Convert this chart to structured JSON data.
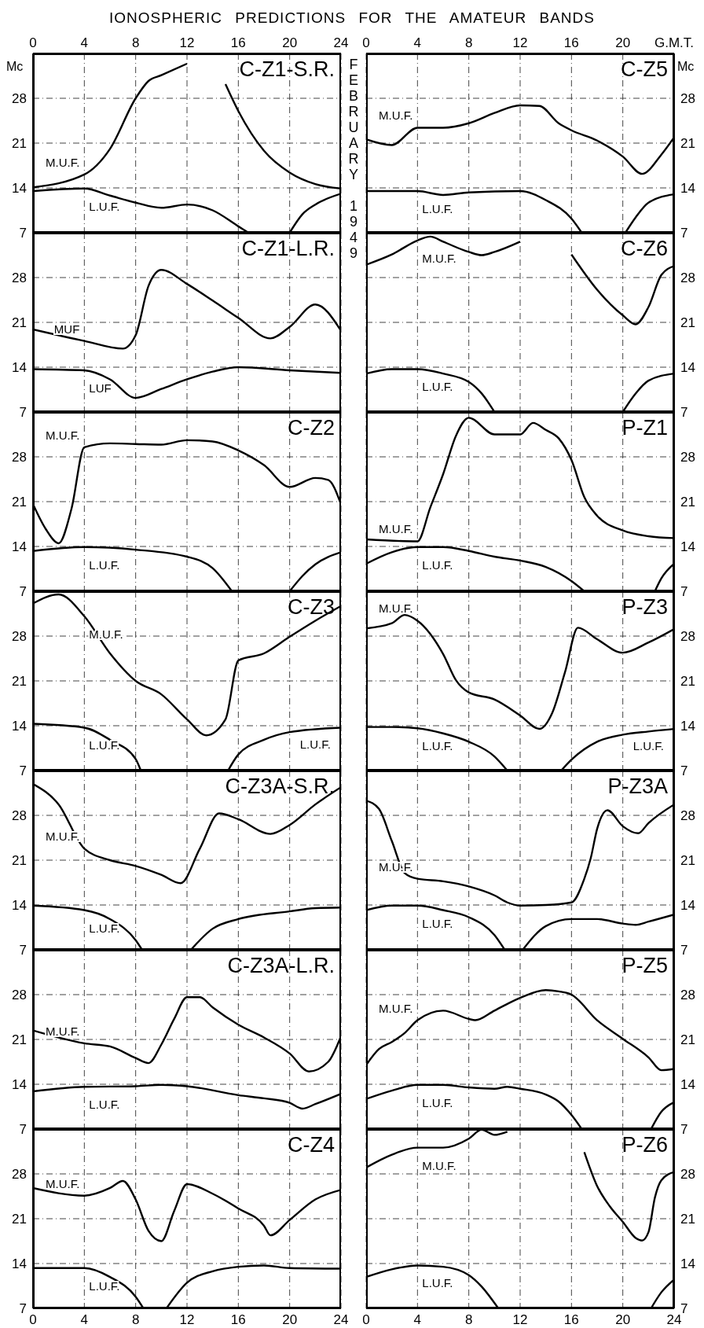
{
  "chart_data": [
    {
      "type": "line",
      "title": "C-Z1-S.R.",
      "ylabel": "Mc",
      "annotations": [
        "IONOSPHERIC PREDICTIONS FOR THE AMATEUR BANDS",
        "FEBRUARY 1949"
      ],
      "xlim": [
        0,
        24
      ],
      "xticks": [
        0,
        4,
        8,
        12,
        16,
        20,
        24
      ],
      "ylim": [
        7,
        35
      ],
      "yticks": [
        7,
        14,
        21,
        28
      ],
      "grid": true,
      "series": [
        {
          "name": "M.U.F.",
          "color": "#000000",
          "x": [
            0,
            4,
            6,
            8,
            9,
            10,
            12,
            13,
            14,
            15,
            16,
            18,
            20,
            22,
            24
          ],
          "values": [
            14.1,
            16.1,
            20.1,
            28,
            30.7,
            31.6,
            33.4,
            null,
            null,
            30.2,
            26,
            19.8,
            16.4,
            14.6,
            13.9
          ]
        },
        {
          "name": "L.U.F.",
          "color": "#000000",
          "x": [
            0,
            4,
            6,
            8,
            10,
            12,
            14,
            16,
            16.8,
            18,
            20,
            21,
            22,
            24
          ],
          "values": [
            13.5,
            13.9,
            12.8,
            11.7,
            10.9,
            11.4,
            10.5,
            8,
            7,
            null,
            7,
            9.9,
            11.4,
            13.1
          ]
        }
      ]
    },
    {
      "type": "line",
      "title": "C-Z1-L.R.",
      "xlim": [
        0,
        24
      ],
      "xticks": [
        0,
        4,
        8,
        12,
        16,
        20,
        24
      ],
      "ylim": [
        7,
        35
      ],
      "yticks": [
        7,
        14,
        21,
        28
      ],
      "grid": true,
      "tick_labels": "y",
      "series": [
        {
          "name": "MUF",
          "color": "#000000",
          "x": [
            0,
            4,
            7,
            8,
            9,
            10,
            12,
            14,
            16,
            18.5,
            20,
            22,
            24
          ],
          "values": [
            19.9,
            18.1,
            16.9,
            19,
            26.7,
            29.2,
            27,
            24.4,
            21.7,
            18.5,
            20.3,
            23.8,
            19.7
          ]
        },
        {
          "name": "LUF",
          "color": "#000000",
          "x": [
            0,
            4,
            6,
            8,
            10,
            12,
            14,
            16,
            20,
            24
          ],
          "values": [
            13.7,
            13.5,
            12.1,
            9.2,
            10.6,
            12.1,
            13.3,
            14,
            13.5,
            13.1
          ]
        }
      ]
    },
    {
      "type": "line",
      "title": "C-Z2",
      "xlim": [
        0,
        24
      ],
      "xticks": [
        0,
        4,
        8,
        12,
        16,
        20,
        24
      ],
      "ylim": [
        7,
        35
      ],
      "yticks": [
        7,
        14,
        21,
        28
      ],
      "grid": true,
      "tick_labels": "y",
      "series": [
        {
          "name": "M.U.F.",
          "color": "#000000",
          "x": [
            0,
            1,
            2,
            3,
            4,
            6,
            8,
            10,
            12,
            14,
            16,
            18,
            20,
            22,
            23,
            24
          ],
          "values": [
            20.6,
            16.7,
            14.5,
            19.9,
            29.5,
            30.1,
            30,
            29.9,
            30.6,
            30.4,
            29,
            26.7,
            23.3,
            24.7,
            24.4,
            20.6
          ]
        },
        {
          "name": "L.U.F.",
          "color": "#000000",
          "x": [
            0,
            4,
            8,
            12,
            14,
            15.5,
            18,
            20,
            21,
            22,
            24
          ],
          "values": [
            13.3,
            13.9,
            13.5,
            12.4,
            10.6,
            7,
            null,
            7,
            9.4,
            11.2,
            13.1
          ]
        }
      ]
    },
    {
      "type": "line",
      "title": "C-Z3",
      "xlim": [
        0,
        24
      ],
      "xticks": [
        0,
        4,
        8,
        12,
        16,
        20,
        24
      ],
      "ylim": [
        7,
        35
      ],
      "yticks": [
        7,
        14,
        21,
        28
      ],
      "grid": true,
      "tick_labels": "y",
      "annotations": [
        {
          "text": "L.U.F.",
          "x": 22,
          "y": 13.4
        }
      ],
      "series": [
        {
          "name": "M.U.F.",
          "color": "#000000",
          "x": [
            0,
            2,
            4,
            6,
            8,
            10,
            12,
            13.5,
            15,
            16,
            18,
            20,
            22,
            24
          ],
          "values": [
            33.1,
            34.5,
            31.1,
            25.3,
            21,
            18.9,
            15,
            12.5,
            15,
            24.2,
            25.3,
            27.9,
            30.4,
            32.7
          ]
        },
        {
          "name": "L.U.F.",
          "color": "#000000",
          "x": [
            0,
            4,
            6,
            8,
            8.4,
            12,
            15.2,
            16,
            18,
            20,
            24
          ],
          "values": [
            14.3,
            13.7,
            11.8,
            8.8,
            7,
            null,
            7,
            9.5,
            11.8,
            13,
            13.7
          ]
        }
      ]
    },
    {
      "type": "line",
      "title": "C-Z3A-S.R.",
      "xlim": [
        0,
        24
      ],
      "xticks": [
        0,
        4,
        8,
        12,
        16,
        20,
        24
      ],
      "ylim": [
        7,
        35
      ],
      "yticks": [
        7,
        14,
        21,
        28
      ],
      "grid": true,
      "tick_labels": "y",
      "series": [
        {
          "name": "M.U.F.",
          "color": "#000000",
          "x": [
            0,
            2,
            4,
            6,
            8,
            10,
            11.5,
            13,
            14.5,
            16,
            18.5,
            20,
            22,
            24
          ],
          "values": [
            32.9,
            29.7,
            22.8,
            21,
            20.1,
            18.7,
            17.4,
            22.8,
            28.3,
            27.4,
            25.1,
            26.5,
            29.7,
            32.4
          ]
        },
        {
          "name": "L.U.F.",
          "color": "#000000",
          "x": [
            0,
            4,
            6,
            8,
            8.5,
            10,
            12.3,
            14,
            16,
            20,
            22,
            24
          ],
          "values": [
            13.9,
            13.2,
            11.8,
            8.5,
            7,
            null,
            7,
            10.3,
            11.8,
            13,
            13.5,
            13.6
          ]
        }
      ]
    },
    {
      "type": "line",
      "title": "C-Z3A-L.R.",
      "xlim": [
        0,
        24
      ],
      "xticks": [
        0,
        4,
        8,
        12,
        16,
        20,
        24
      ],
      "ylim": [
        7,
        35
      ],
      "yticks": [
        7,
        14,
        21,
        28
      ],
      "grid": true,
      "tick_labels": "y",
      "series": [
        {
          "name": "M.U.F.",
          "color": "#000000",
          "x": [
            0,
            2,
            4,
            6,
            8,
            9,
            10,
            11,
            12,
            13,
            14,
            16,
            18,
            20,
            21.5,
            23,
            24
          ],
          "values": [
            22.4,
            21.3,
            20.4,
            19.9,
            18.1,
            17.3,
            20.2,
            24.2,
            27.6,
            27.6,
            26,
            23.3,
            21.3,
            18.8,
            16,
            17.5,
            21.5
          ]
        },
        {
          "name": "L.U.F.",
          "color": "#000000",
          "x": [
            0,
            4,
            8,
            10,
            12,
            16,
            18,
            20,
            21,
            22,
            24
          ],
          "values": [
            12.9,
            13.6,
            13.7,
            13.9,
            13.7,
            12.3,
            11.8,
            11.1,
            10.2,
            10.9,
            12.5
          ]
        }
      ]
    },
    {
      "type": "line",
      "title": "C-Z4",
      "xlim": [
        0,
        24
      ],
      "xticks": [
        0,
        4,
        8,
        12,
        16,
        20,
        24
      ],
      "ylim": [
        7,
        35
      ],
      "yticks": [
        7,
        14,
        21,
        28
      ],
      "grid": true,
      "series": [
        {
          "name": "M.U.F.",
          "color": "#000000",
          "x": [
            0,
            4,
            6,
            7,
            8,
            9,
            10,
            11,
            12,
            14,
            16,
            18,
            18.5,
            20,
            22,
            24
          ],
          "values": [
            25.8,
            24.6,
            25.8,
            26.9,
            24,
            19.1,
            17.5,
            22.2,
            26.4,
            24.9,
            22.6,
            19.9,
            18.4,
            20.8,
            24,
            25.5
          ]
        },
        {
          "name": "L.U.F.",
          "color": "#000000",
          "x": [
            0,
            4,
            6,
            8,
            8.6,
            9.5,
            10.4,
            12,
            14,
            16,
            18,
            20,
            24
          ],
          "values": [
            13.3,
            13.3,
            11.9,
            8.8,
            7,
            null,
            7,
            11,
            12.8,
            13.5,
            13.7,
            13.3,
            13.2
          ]
        }
      ]
    },
    {
      "type": "line",
      "title": "C-Z5",
      "ylabel": "Mc",
      "xlim": [
        0,
        24
      ],
      "xticks": [
        0,
        4,
        8,
        12,
        16,
        20,
        {
          "value": 24,
          "label": "G.M.T."
        }
      ],
      "ylim": [
        7,
        35
      ],
      "yticks": [
        7,
        14,
        21,
        28
      ],
      "grid": true,
      "series": [
        {
          "name": "M.U.F.",
          "color": "#000000",
          "x": [
            0,
            2,
            4,
            6,
            8,
            10,
            12,
            13.5,
            15,
            16,
            18,
            20,
            21.5,
            23,
            24
          ],
          "values": [
            21.6,
            20.7,
            23.4,
            23.4,
            24.1,
            25.7,
            26.9,
            26.8,
            24.1,
            23,
            21.4,
            18.9,
            16.2,
            19.2,
            21.9
          ]
        },
        {
          "name": "L.U.F.",
          "color": "#000000",
          "x": [
            0,
            4,
            6,
            8,
            12,
            14,
            16,
            16.8,
            18,
            20.2,
            21,
            22,
            24
          ],
          "values": [
            13.5,
            13.5,
            12.9,
            13.3,
            13.5,
            12.1,
            9.2,
            7,
            null,
            7,
            9.4,
            11.7,
            13
          ]
        }
      ]
    },
    {
      "type": "line",
      "title": "C-Z6",
      "xlim": [
        0,
        24
      ],
      "xticks": [
        0,
        4,
        8,
        12,
        16,
        20,
        24
      ],
      "ylim": [
        7,
        35
      ],
      "yticks": [
        7,
        14,
        21,
        28
      ],
      "grid": true,
      "tick_labels": "y",
      "series": [
        {
          "name": "M.U.F.",
          "color": "#000000",
          "x": [
            0,
            2,
            4,
            5,
            6,
            8,
            9,
            10,
            12,
            12.5,
            14,
            15,
            16,
            18,
            20,
            21,
            22,
            23,
            24
          ],
          "values": [
            30,
            31.6,
            33.8,
            34.4,
            33.6,
            32,
            31.5,
            32,
            33.6,
            null,
            null,
            null,
            31.6,
            26.1,
            22.1,
            20.7,
            23.4,
            28.4,
            29.8
          ]
        },
        {
          "name": "L.U.F.",
          "color": "#000000",
          "x": [
            0,
            2,
            4,
            6,
            8,
            9,
            10,
            15,
            20,
            21,
            22,
            24
          ],
          "values": [
            13,
            13.7,
            13.7,
            13,
            11.7,
            9.9,
            7,
            null,
            7,
            9.9,
            11.9,
            13
          ]
        }
      ]
    },
    {
      "type": "line",
      "title": "P-Z1",
      "xlim": [
        0,
        24
      ],
      "xticks": [
        0,
        4,
        8,
        12,
        16,
        20,
        24
      ],
      "ylim": [
        7,
        35
      ],
      "yticks": [
        7,
        14,
        21,
        28
      ],
      "grid": true,
      "tick_labels": "y",
      "series": [
        {
          "name": "M.U.F.",
          "color": "#000000",
          "x": [
            0,
            4,
            5,
            6,
            7,
            8,
            10,
            12,
            13,
            14,
            15,
            16,
            17,
            18,
            20,
            22,
            24
          ],
          "values": [
            15.1,
            14.8,
            20.1,
            25.3,
            31.3,
            34.1,
            31.5,
            31.5,
            33.3,
            32.2,
            30.9,
            27.5,
            21.7,
            18.8,
            16.5,
            15.6,
            15.3
          ]
        },
        {
          "name": "L.U.F.",
          "color": "#000000",
          "x": [
            0,
            2,
            4,
            6,
            8,
            10,
            12,
            14,
            16,
            17,
            20,
            22.5,
            23,
            24
          ],
          "values": [
            11.3,
            13.1,
            13.9,
            13.9,
            13.3,
            12.4,
            11.8,
            10.8,
            8.6,
            7,
            null,
            7,
            9,
            11.3
          ]
        }
      ]
    },
    {
      "type": "line",
      "title": "P-Z3",
      "xlim": [
        0,
        24
      ],
      "xticks": [
        0,
        4,
        8,
        12,
        16,
        20,
        24
      ],
      "ylim": [
        7,
        35
      ],
      "yticks": [
        7,
        14,
        21,
        28
      ],
      "grid": true,
      "tick_labels": "y",
      "annotations": [
        {
          "text": "L.U.F.",
          "x": 22,
          "y": 13.1
        }
      ],
      "series": [
        {
          "name": "M.U.F.",
          "color": "#000000",
          "x": [
            0,
            2,
            3,
            4,
            6,
            7,
            8,
            10,
            12,
            13.5,
            14.5,
            15.5,
            16.5,
            18,
            20,
            22,
            24
          ],
          "values": [
            29.2,
            30,
            31.3,
            30.4,
            25.2,
            21.1,
            19.2,
            18.1,
            15.6,
            13.5,
            16,
            22.4,
            29.3,
            27.5,
            25.4,
            27,
            29.1
          ]
        },
        {
          "name": "L.U.F.",
          "color": "#000000",
          "x": [
            0,
            2,
            4,
            6,
            8,
            10,
            11,
            13,
            15.2,
            16,
            18,
            20,
            22,
            24
          ],
          "values": [
            13.8,
            13.8,
            13.6,
            12.8,
            11.5,
            9.2,
            7,
            null,
            7,
            8.7,
            11.5,
            12.6,
            13.1,
            13.5
          ]
        }
      ]
    },
    {
      "type": "line",
      "title": "P-Z3A",
      "xlim": [
        0,
        24
      ],
      "xticks": [
        0,
        4,
        8,
        12,
        16,
        20,
        24
      ],
      "ylim": [
        7,
        35
      ],
      "yticks": [
        7,
        14,
        21,
        28
      ],
      "grid": true,
      "tick_labels": "y",
      "series": [
        {
          "name": "M.U.F.",
          "color": "#000000",
          "x": [
            0,
            1,
            2,
            3,
            4,
            6,
            8,
            10,
            11,
            12,
            14,
            16,
            17,
            17.5,
            18,
            18.8,
            20,
            21.2,
            22,
            24
          ],
          "values": [
            30.3,
            29,
            24,
            19,
            18.1,
            17.7,
            16.9,
            15.5,
            14.4,
            13.9,
            14,
            14.4,
            18.1,
            21.3,
            25.9,
            28.8,
            26.3,
            25.2,
            26.8,
            29.7
          ]
        },
        {
          "name": "L.U.F.",
          "color": "#000000",
          "x": [
            0,
            2,
            4,
            6,
            8,
            10,
            10.8,
            11.5,
            12.2,
            14,
            16,
            18,
            20,
            21,
            22,
            24
          ],
          "values": [
            13.2,
            13.9,
            13.9,
            13.2,
            12.1,
            9.3,
            7,
            null,
            7,
            10.7,
            11.8,
            11.8,
            11.1,
            10.9,
            11.4,
            12.5
          ]
        }
      ]
    },
    {
      "type": "line",
      "title": "P-Z5",
      "xlim": [
        0,
        24
      ],
      "xticks": [
        0,
        4,
        8,
        12,
        16,
        20,
        24
      ],
      "ylim": [
        7,
        35
      ],
      "yticks": [
        7,
        14,
        21,
        28
      ],
      "grid": true,
      "tick_labels": "y",
      "series": [
        {
          "name": "M.U.F.",
          "color": "#000000",
          "x": [
            0,
            1,
            2,
            3,
            4,
            6,
            8,
            8.5,
            10,
            12,
            14,
            15,
            16,
            18,
            20,
            22,
            23,
            24
          ],
          "values": [
            17,
            19.5,
            20.6,
            22,
            24,
            25.5,
            24.2,
            24,
            25.5,
            27.5,
            28.7,
            28.5,
            28,
            24,
            21.1,
            18.2,
            16.2,
            16.4
          ]
        },
        {
          "name": "L.U.F.",
          "color": "#000000",
          "x": [
            0,
            2,
            4,
            6,
            8,
            10,
            11,
            12,
            14,
            15,
            16,
            16.8,
            20,
            22.2,
            23,
            24
          ],
          "values": [
            11.7,
            13,
            13.9,
            13.9,
            13.5,
            13.3,
            13.6,
            13.3,
            12.4,
            11.3,
            9.2,
            7,
            null,
            7,
            9.7,
            11.2
          ]
        }
      ]
    },
    {
      "type": "line",
      "title": "P-Z6",
      "xlim": [
        0,
        24
      ],
      "xticks": [
        0,
        4,
        8,
        12,
        16,
        20,
        24
      ],
      "ylim": [
        7,
        35
      ],
      "yticks": [
        7,
        14,
        21,
        28
      ],
      "grid": true,
      "series": [
        {
          "name": "M.U.F.",
          "color": "#000000",
          "x": [
            0,
            2,
            4,
            6,
            8,
            9,
            10,
            11,
            12,
            14,
            16,
            17,
            18,
            19,
            20,
            21,
            21.5,
            22,
            22.5,
            23,
            24
          ],
          "values": [
            29,
            31,
            32.1,
            32.1,
            33.5,
            34.9,
            34.1,
            34.6,
            null,
            null,
            null,
            31.4,
            26.1,
            22.9,
            20.5,
            18,
            17.6,
            18.9,
            24.3,
            27,
            28.3
          ]
        },
        {
          "name": "L.U.F.",
          "color": "#000000",
          "x": [
            0,
            2,
            4,
            6,
            8,
            9,
            10.3,
            16,
            22.2,
            23,
            24
          ],
          "values": [
            11.9,
            13.1,
            13.7,
            13.5,
            12.2,
            10.4,
            7,
            null,
            7,
            9.5,
            11.5
          ]
        }
      ]
    }
  ]
}
